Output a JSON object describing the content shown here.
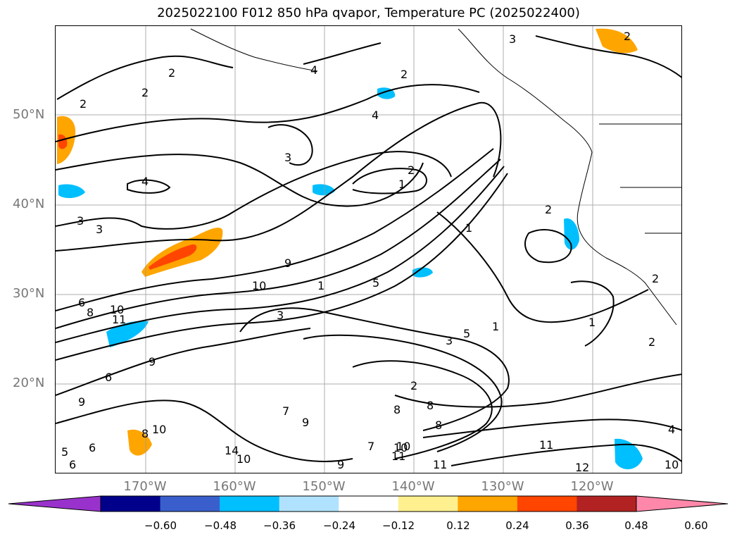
{
  "title": "2025022100 F012 850 hPa qvapor, Temperature PC (2025022400)",
  "map": {
    "lat_labels": [
      "50°N",
      "40°N",
      "30°N",
      "20°N"
    ],
    "lon_labels": [
      "170°W",
      "160°W",
      "150°W",
      "140°W",
      "130°W",
      "120°W"
    ],
    "contour_labels": [
      "3",
      "2",
      "4",
      "2",
      "2",
      "2",
      "4",
      "2",
      "3",
      "2",
      "4",
      "3",
      "2",
      "1",
      "9",
      "10",
      "1",
      "5",
      "6",
      "8",
      "10",
      "11",
      "3",
      "1",
      "5",
      "3",
      "2",
      "1",
      "1",
      "2",
      "2",
      "9",
      "6",
      "9",
      "6",
      "10",
      "8",
      "7",
      "9",
      "8",
      "10",
      "11",
      "14",
      "10",
      "9",
      "7",
      "8",
      "8",
      "10",
      "11",
      "11",
      "12",
      "10",
      "4",
      "6",
      "5",
      "3"
    ]
  },
  "colorbar": {
    "tick_labels": [
      "−0.60",
      "−0.48",
      "−0.36",
      "−0.24",
      "−0.12",
      "0.12",
      "0.24",
      "0.36",
      "0.48",
      "0.60"
    ],
    "colors": [
      "#9932cc",
      "#00008b",
      "#3a5fcd",
      "#00bfff",
      "#b0e2ff",
      "#ffffff",
      "#fff08f",
      "#ffa500",
      "#ff4500",
      "#b22222",
      "#ff88aa"
    ],
    "under_color": "#9932cc",
    "over_color": "#ff88aa"
  }
}
